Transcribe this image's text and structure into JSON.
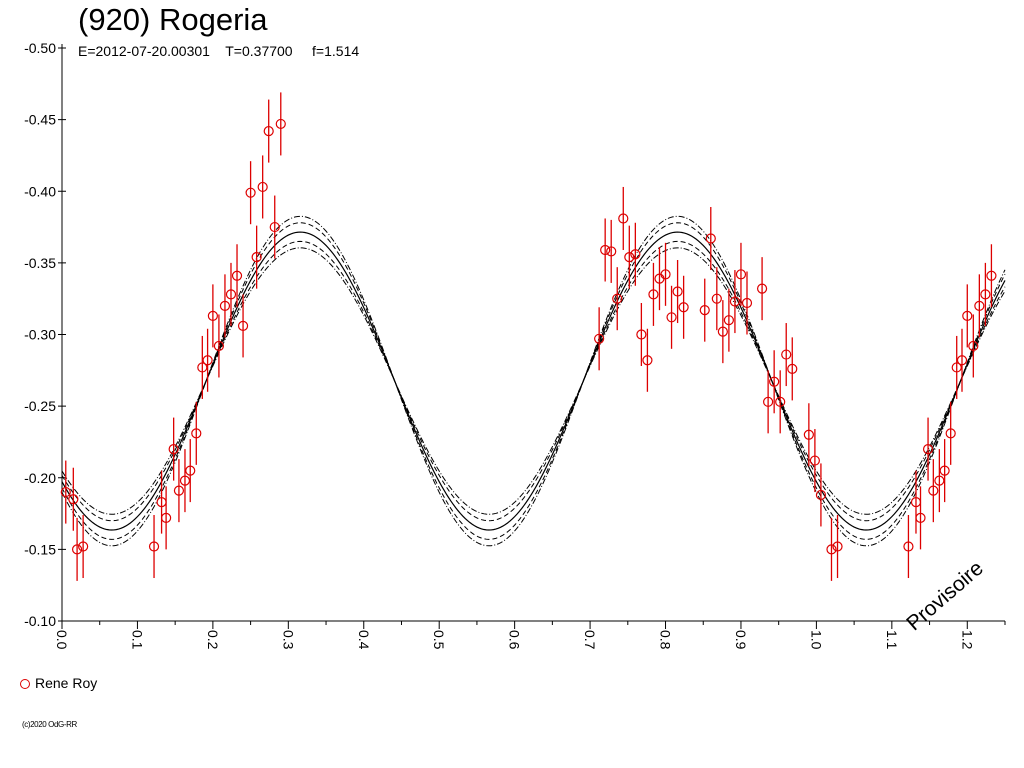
{
  "chart_data": {
    "type": "scatter",
    "title": "(920) Rogeria",
    "subtitle": "E=2012-07-20.00301    T=0.37700     f=1.514",
    "xlabel": "",
    "ylabel": "",
    "xlim": [
      0.0,
      1.25
    ],
    "ylim": [
      -0.1,
      -0.5
    ],
    "x_ticks": [
      "0.0",
      "0.1",
      "0.2",
      "0.3",
      "0.4",
      "0.5",
      "0.6",
      "0.7",
      "0.8",
      "0.9",
      "1.0",
      "1.1",
      "1.2"
    ],
    "y_ticks": [
      "-0.50",
      "-0.45",
      "-0.40",
      "-0.35",
      "-0.30",
      "-0.25",
      "-0.20",
      "-0.15",
      "-0.10"
    ],
    "grid": false,
    "legend_position": "bottom-left",
    "fit_model": {
      "description_curves": [
        "solid",
        "dashed",
        "dash-dot"
      ],
      "mean_mag": -0.2675,
      "amplitude": 0.104,
      "phase_of_max": 0.316,
      "period_fraction": 0.5,
      "dashed_offset": 0.0065,
      "dashdot_offset": 0.011
    },
    "series": [
      {
        "name": "Rene Roy",
        "color": "#dd0000",
        "marker": "open-circle",
        "error_bar": 0.022,
        "points": [
          [
            0.005,
            -0.19
          ],
          [
            0.015,
            -0.185
          ],
          [
            0.02,
            -0.15
          ],
          [
            0.028,
            -0.152
          ],
          [
            0.122,
            -0.152
          ],
          [
            0.132,
            -0.183
          ],
          [
            0.138,
            -0.172
          ],
          [
            0.148,
            -0.22
          ],
          [
            0.155,
            -0.191
          ],
          [
            0.163,
            -0.198
          ],
          [
            0.17,
            -0.205
          ],
          [
            0.178,
            -0.231
          ],
          [
            0.186,
            -0.277
          ],
          [
            0.193,
            -0.282
          ],
          [
            0.2,
            -0.313
          ],
          [
            0.208,
            -0.292
          ],
          [
            0.216,
            -0.32
          ],
          [
            0.224,
            -0.328
          ],
          [
            0.232,
            -0.341
          ],
          [
            0.24,
            -0.306
          ],
          [
            0.25,
            -0.399
          ],
          [
            0.258,
            -0.354
          ],
          [
            0.266,
            -0.403
          ],
          [
            0.274,
            -0.442
          ],
          [
            0.282,
            -0.375
          ],
          [
            0.29,
            -0.447
          ],
          [
            0.712,
            -0.297
          ],
          [
            0.72,
            -0.359
          ],
          [
            0.728,
            -0.358
          ],
          [
            0.736,
            -0.325
          ],
          [
            0.744,
            -0.381
          ],
          [
            0.752,
            -0.354
          ],
          [
            0.76,
            -0.356
          ],
          [
            0.768,
            -0.3
          ],
          [
            0.776,
            -0.282
          ],
          [
            0.784,
            -0.328
          ],
          [
            0.792,
            -0.339
          ],
          [
            0.8,
            -0.342
          ],
          [
            0.808,
            -0.312
          ],
          [
            0.816,
            -0.33
          ],
          [
            0.824,
            -0.319
          ],
          [
            0.852,
            -0.317
          ],
          [
            0.86,
            -0.367
          ],
          [
            0.868,
            -0.325
          ],
          [
            0.876,
            -0.302
          ],
          [
            0.884,
            -0.31
          ],
          [
            0.892,
            -0.323
          ],
          [
            0.9,
            -0.342
          ],
          [
            0.908,
            -0.322
          ],
          [
            0.928,
            -0.332
          ],
          [
            0.936,
            -0.253
          ],
          [
            0.944,
            -0.267
          ],
          [
            0.952,
            -0.253
          ],
          [
            0.96,
            -0.286
          ],
          [
            0.968,
            -0.276
          ],
          [
            0.99,
            -0.23
          ],
          [
            0.998,
            -0.212
          ],
          [
            1.006,
            -0.188
          ],
          [
            1.02,
            -0.15
          ],
          [
            1.028,
            -0.152
          ],
          [
            1.122,
            -0.152
          ],
          [
            1.132,
            -0.183
          ],
          [
            1.138,
            -0.172
          ],
          [
            1.148,
            -0.22
          ],
          [
            1.155,
            -0.191
          ],
          [
            1.163,
            -0.198
          ],
          [
            1.17,
            -0.205
          ],
          [
            1.178,
            -0.231
          ],
          [
            1.186,
            -0.277
          ],
          [
            1.193,
            -0.282
          ],
          [
            1.2,
            -0.313
          ],
          [
            1.208,
            -0.292
          ],
          [
            1.216,
            -0.32
          ],
          [
            1.224,
            -0.328
          ],
          [
            1.232,
            -0.341
          ]
        ]
      }
    ]
  },
  "legend_label": "Rene Roy",
  "copyright": "(c)2020 OdG-RR",
  "watermark": "Provisoire"
}
